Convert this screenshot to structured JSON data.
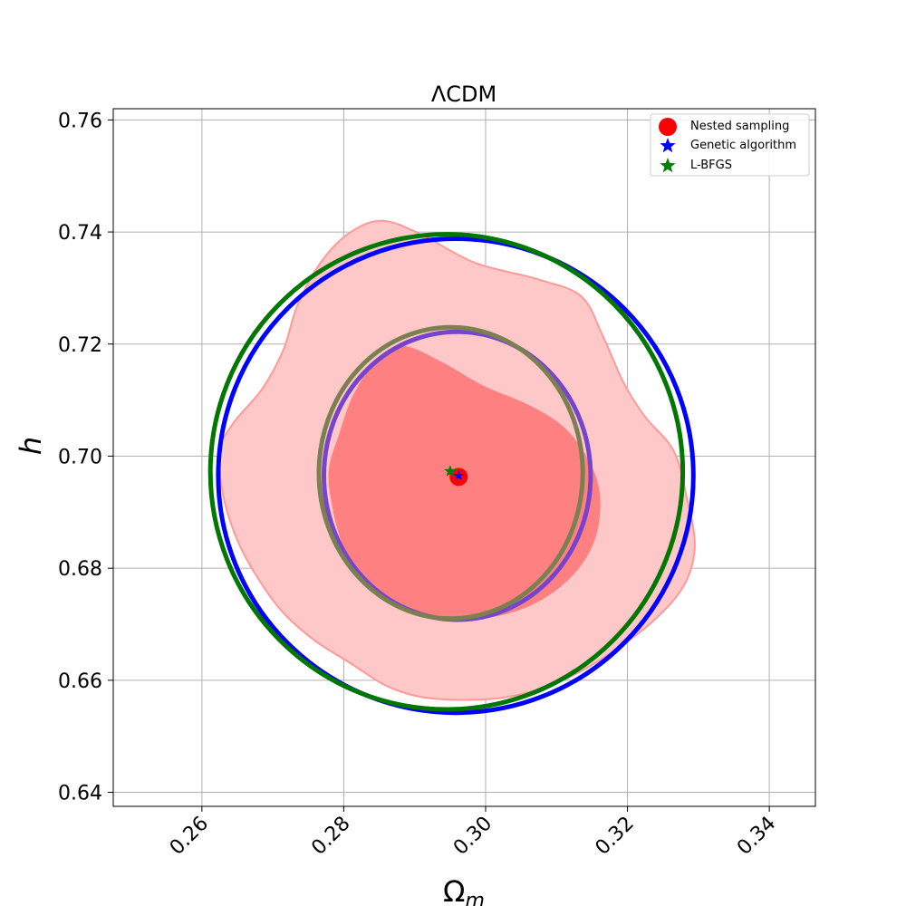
{
  "chart_data": {
    "type": "contour",
    "title": "ΛCDM",
    "xlabel": "Ω",
    "xlabel_sub": "m",
    "ylabel": "h",
    "xlim": [
      0.2475,
      0.3465
    ],
    "ylim": [
      0.6375,
      0.762
    ],
    "xticks": [
      0.26,
      0.28,
      0.3,
      0.32,
      0.34
    ],
    "xtick_labels": [
      "0.26",
      "0.28",
      "0.30",
      "0.32",
      "0.34"
    ],
    "yticks": [
      0.64,
      0.66,
      0.68,
      0.7,
      0.72,
      0.74,
      0.76
    ],
    "ytick_labels": [
      "0.64",
      "0.66",
      "0.68",
      "0.70",
      "0.72",
      "0.74",
      "0.76"
    ],
    "grid": true,
    "legend_position": "top-right",
    "legend": [
      {
        "label": "Nested sampling",
        "marker": "circle",
        "color": "#ff0000"
      },
      {
        "label": "Genetic algorithm",
        "marker": "star",
        "color": "#0000ff"
      },
      {
        "label": "L-BFGS",
        "marker": "star",
        "color": "#008000"
      }
    ],
    "best_fit": [
      {
        "method": "Nested sampling",
        "x": 0.2962,
        "y": 0.6963
      },
      {
        "method": "Genetic algorithm",
        "x": 0.2962,
        "y": 0.6965
      },
      {
        "method": "L-BFGS",
        "x": 0.295,
        "y": 0.6973
      }
    ],
    "nested_sampling_contours": [
      {
        "level": "2-sigma",
        "color": "#ffc8c8",
        "edge": "#ff9999",
        "points": [
          [
            0.291,
            0.7395
          ],
          [
            0.2985,
            0.7345
          ],
          [
            0.3075,
            0.7315
          ],
          [
            0.3135,
            0.7285
          ],
          [
            0.3165,
            0.7215
          ],
          [
            0.3195,
            0.713
          ],
          [
            0.3225,
            0.707
          ],
          [
            0.3265,
            0.701
          ],
          [
            0.3283,
            0.693
          ],
          [
            0.3295,
            0.684
          ],
          [
            0.328,
            0.677
          ],
          [
            0.324,
            0.671
          ],
          [
            0.319,
            0.666
          ],
          [
            0.314,
            0.662
          ],
          [
            0.309,
            0.659
          ],
          [
            0.303,
            0.657
          ],
          [
            0.297,
            0.6565
          ],
          [
            0.291,
            0.657
          ],
          [
            0.286,
            0.659
          ],
          [
            0.281,
            0.663
          ],
          [
            0.276,
            0.667
          ],
          [
            0.2715,
            0.672
          ],
          [
            0.268,
            0.678
          ],
          [
            0.265,
            0.685
          ],
          [
            0.263,
            0.693
          ],
          [
            0.2625,
            0.701
          ],
          [
            0.2645,
            0.706
          ],
          [
            0.2685,
            0.712
          ],
          [
            0.2715,
            0.719
          ],
          [
            0.2735,
            0.727
          ],
          [
            0.277,
            0.735
          ],
          [
            0.281,
            0.74
          ],
          [
            0.2855,
            0.742
          ]
        ]
      },
      {
        "level": "1-sigma",
        "color": "#ff8080",
        "edge": "#ff8080",
        "points": [
          [
            0.2885,
            0.7195
          ],
          [
            0.294,
            0.7165
          ],
          [
            0.2995,
            0.7125
          ],
          [
            0.306,
            0.709
          ],
          [
            0.311,
            0.705
          ],
          [
            0.3145,
            0.699
          ],
          [
            0.316,
            0.693
          ],
          [
            0.3155,
            0.686
          ],
          [
            0.313,
            0.68
          ],
          [
            0.3085,
            0.675
          ],
          [
            0.303,
            0.672
          ],
          [
            0.2975,
            0.671
          ],
          [
            0.2915,
            0.6715
          ],
          [
            0.2865,
            0.6745
          ],
          [
            0.2825,
            0.6785
          ],
          [
            0.28,
            0.684
          ],
          [
            0.2785,
            0.691
          ],
          [
            0.278,
            0.6975
          ],
          [
            0.2795,
            0.704
          ],
          [
            0.2815,
            0.711
          ],
          [
            0.285,
            0.7175
          ]
        ]
      }
    ],
    "genetic_algorithm_ellipses": [
      {
        "level": "1-sigma",
        "color": "#7744cc",
        "cx": 0.296,
        "cy": 0.6965,
        "rx": 0.0188,
        "ry": 0.0257
      },
      {
        "level": "2-sigma",
        "color": "#0000ff",
        "cx": 0.2958,
        "cy": 0.6965,
        "rx": 0.0335,
        "ry": 0.0423
      }
    ],
    "lbfgs_ellipses": [
      {
        "level": "1-sigma",
        "color": "#7a8050",
        "cx": 0.2951,
        "cy": 0.697,
        "rx": 0.0186,
        "ry": 0.026
      },
      {
        "level": "2-sigma",
        "color": "#007700",
        "cx": 0.2945,
        "cy": 0.6972,
        "rx": 0.0333,
        "ry": 0.0424
      }
    ]
  }
}
